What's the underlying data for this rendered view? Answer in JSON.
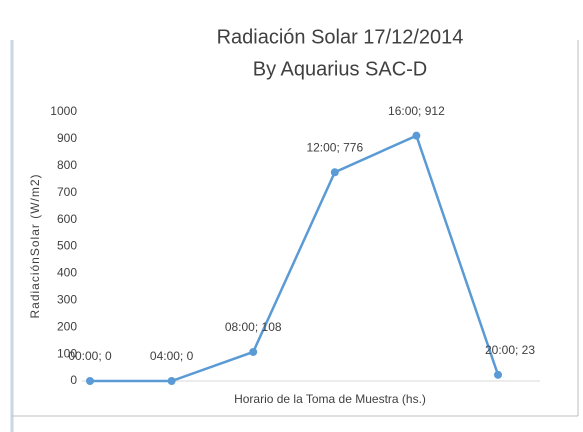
{
  "chart_data": {
    "type": "line",
    "title": "Radiación Solar 17/12/2014",
    "subtitle": "By Aquarius SAC-D",
    "y_label": "RadiaciónSolar  (W/m2)",
    "x_label": "Horario de la Toma de Muestra (hs.)",
    "values": [
      0,
      0,
      108,
      776,
      912,
      23
    ],
    "value_labels": [
      "00:00; 0",
      "04:00; 0",
      "08:00; 108",
      "12:00; 776",
      "16:00; 912",
      "20:00; 23"
    ],
    "color": "#5b9bd5",
    "ylim": [
      0,
      1000
    ],
    "yticks": [
      0,
      100,
      200,
      300,
      400,
      500,
      600,
      700,
      800,
      900,
      1000
    ],
    "grid": false
  }
}
